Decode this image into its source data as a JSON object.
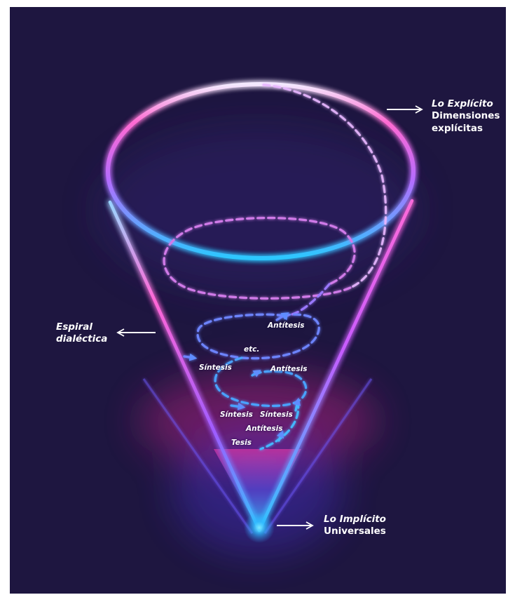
{
  "labels": {
    "explicit": {
      "title": "Lo Explícito",
      "line1": "Dimensiones",
      "line2": "explícitas"
    },
    "spiral": {
      "line1": "Espiral",
      "line2": "dialéctica"
    },
    "implicit": {
      "title": "Lo Implícito",
      "line1": "Universales"
    }
  },
  "spiral_labels": {
    "antitesis_top": "Antítesis",
    "etc": "etc.",
    "sintesis_left": "Síntesis",
    "antitesis_mid": "Antítesis",
    "sintesis_low_left": "Síntesis",
    "sintesis_low_right": "Síntesis",
    "antitesis_low": "Antítesis",
    "tesis": "Tesis"
  },
  "colors": {
    "background": "#1e1640",
    "frame": "#ffffff",
    "glow_cyan": "#2ec6ff",
    "glow_pink": "#ff5ccd",
    "text": "#ffffff"
  }
}
